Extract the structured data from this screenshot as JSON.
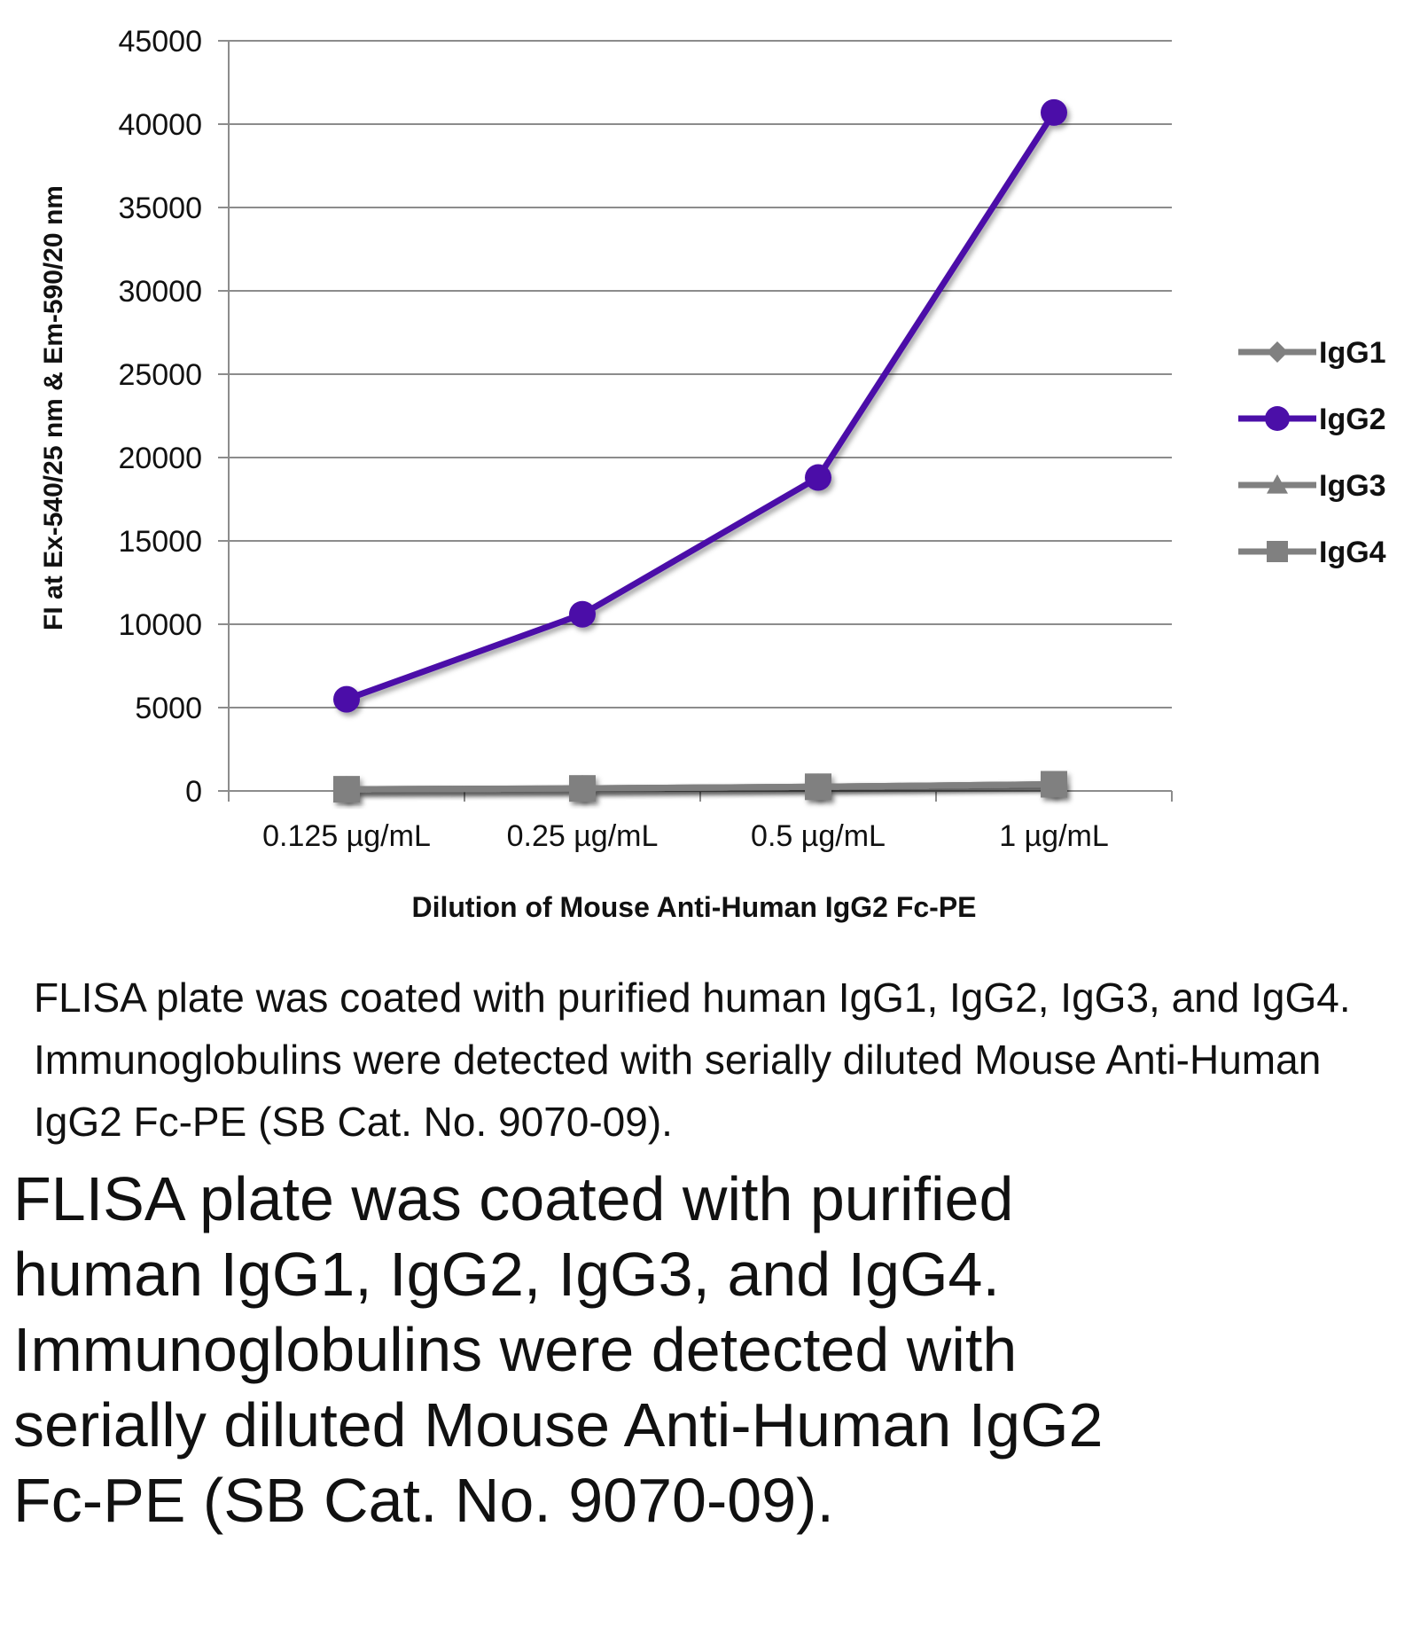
{
  "chart_data": {
    "type": "line",
    "title": "",
    "xlabel": "Dilution of Mouse Anti-Human IgG2 Fc-PE",
    "ylabel": "FI at Ex-540/25 nm & Em-590/20 nm",
    "categories": [
      "0.125 µg/mL",
      "0.25 µg/mL",
      "0.5 µg/mL",
      "1 µg/mL"
    ],
    "ylim": [
      0,
      45000
    ],
    "yticks": [
      0,
      5000,
      10000,
      15000,
      20000,
      25000,
      30000,
      35000,
      40000,
      45000
    ],
    "grid": true,
    "legend_position": "right",
    "series": [
      {
        "name": "IgG1",
        "marker": "diamond",
        "color": "#808080",
        "values": [
          100,
          150,
          250,
          400
        ]
      },
      {
        "name": "IgG2",
        "marker": "circle",
        "color": "#4B0FA8",
        "values": [
          5500,
          10600,
          18800,
          40700
        ]
      },
      {
        "name": "IgG3",
        "marker": "triangle",
        "color": "#808080",
        "values": [
          100,
          150,
          250,
          400
        ]
      },
      {
        "name": "IgG4",
        "marker": "square",
        "color": "#808080",
        "values": [
          100,
          150,
          250,
          400
        ]
      }
    ]
  },
  "caption_small": "FLISA plate was coated with purified human IgG1, IgG2, IgG3, and IgG4.  Immunoglobulins were detected with serially diluted Mouse Anti-Human IgG2 Fc-PE (SB Cat. No. 9070-09).",
  "caption_large": "FLISA plate was coated with purified human IgG1, IgG2, IgG3, and IgG4.  Immunoglobulins were detected with serially diluted Mouse Anti-Human IgG2 Fc-PE (SB Cat. No. 9070-09)."
}
